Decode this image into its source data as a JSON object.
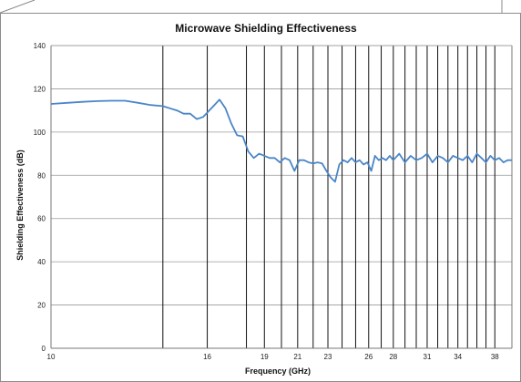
{
  "chart_data": {
    "type": "line",
    "title": "Microwave Shielding Effectiveness",
    "xlabel": "Frequency (GHz)",
    "ylabel": "Shielding Effectiveness (dB)",
    "xscale": "log",
    "xlim": [
      10,
      40
    ],
    "ylim": [
      0,
      140
    ],
    "y_ticks": [
      0,
      20,
      40,
      60,
      80,
      100,
      120,
      140
    ],
    "x_tick_labels": [
      "10",
      "16",
      "19",
      "21",
      "23",
      "26",
      "28",
      "31",
      "34",
      "38"
    ],
    "x_tick_values": [
      10,
      16,
      19,
      21,
      23,
      26,
      28,
      31,
      34,
      38
    ],
    "vertical_lines": [
      14,
      16,
      18,
      19,
      20,
      21,
      22,
      23,
      24,
      25,
      26,
      27,
      28,
      29,
      30,
      31,
      32,
      33,
      34,
      35,
      36,
      37,
      38
    ],
    "grid": "horizontal",
    "line_color": "#4a86c8",
    "series": [
      {
        "x": [
          10,
          10.5,
          11,
          11.5,
          12,
          12.5,
          13,
          13.5,
          14,
          14.3,
          14.6,
          14.9,
          15.2,
          15.5,
          15.8,
          16,
          16.3,
          16.6,
          16.9,
          17.2,
          17.5,
          17.8,
          18.1,
          18.4,
          18.7,
          19,
          19.3,
          19.6,
          19.9,
          20.2,
          20.5,
          20.8,
          21.1,
          21.4,
          21.7,
          22,
          22.3,
          22.6,
          22.9,
          23.2,
          23.5,
          23.8,
          24.1,
          24.4,
          24.7,
          25,
          25.3,
          25.6,
          25.9,
          26.2,
          26.5,
          26.8,
          27.1,
          27.4,
          27.7,
          28,
          28.5,
          29,
          29.5,
          30,
          30.5,
          31,
          31.5,
          32,
          32.5,
          33,
          33.5,
          34,
          34.5,
          35,
          35.5,
          36,
          36.5,
          37,
          37.5,
          38,
          38.5,
          39,
          39.5,
          40
        ],
        "y": [
          113,
          113.5,
          114,
          114.3,
          114.5,
          114.5,
          113.5,
          112.5,
          112,
          111,
          110,
          108.5,
          108.5,
          106,
          107,
          109,
          112,
          115,
          111,
          104,
          98.5,
          98,
          91,
          88,
          90,
          89,
          88,
          88,
          86,
          88,
          87,
          82,
          87,
          87,
          86,
          85.5,
          86,
          85.5,
          82,
          79,
          77,
          85,
          87,
          86,
          88,
          86,
          87,
          85,
          86,
          82,
          89,
          87,
          88,
          87,
          89,
          87,
          90,
          86,
          89,
          87,
          88,
          90,
          86,
          89,
          88,
          86,
          89,
          88,
          87,
          89,
          86,
          90,
          88,
          86,
          89,
          87,
          88,
          86,
          87,
          87
        ]
      }
    ]
  }
}
